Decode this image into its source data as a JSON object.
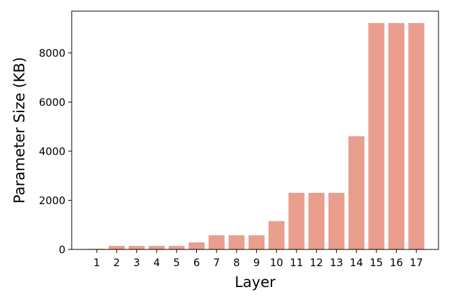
{
  "chart_data": {
    "type": "bar",
    "title": "",
    "xlabel": "Layer",
    "ylabel": "Parameter Size (KB)",
    "categories": [
      "1",
      "2",
      "3",
      "4",
      "5",
      "6",
      "7",
      "8",
      "9",
      "10",
      "11",
      "12",
      "13",
      "14",
      "15",
      "16",
      "17"
    ],
    "values": [
      27,
      144,
      144,
      144,
      144,
      288,
      576,
      576,
      576,
      1152,
      2304,
      2304,
      2304,
      4608,
      9216,
      9216,
      9216
    ],
    "ylim": [
      0,
      9700
    ],
    "yticks": [
      0,
      2000,
      4000,
      6000,
      8000
    ],
    "grid": false,
    "bar_color": "#e99e8e"
  }
}
